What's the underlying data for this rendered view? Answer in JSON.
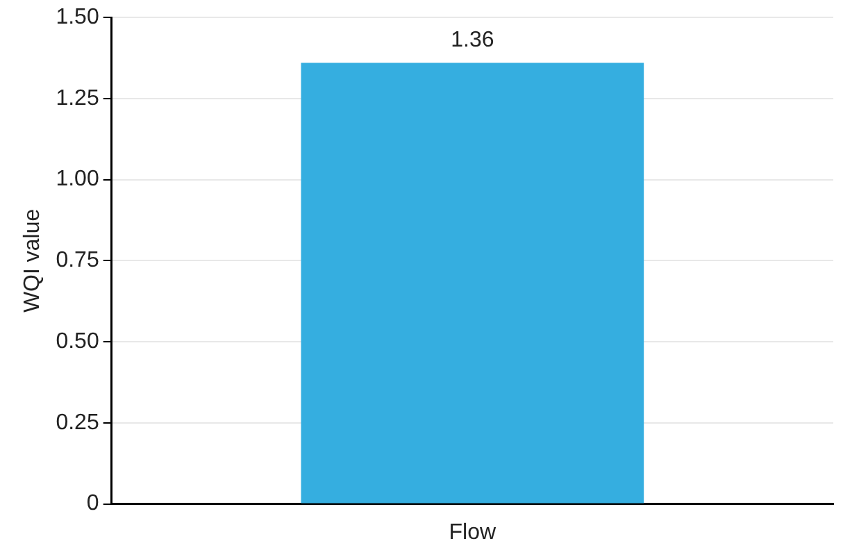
{
  "chart_data": {
    "type": "bar",
    "ylabel": "WQI value",
    "categories": [
      "Flow"
    ],
    "values": [
      1.36
    ],
    "color": "#35aee0",
    "data_labels": true,
    "ylim": [
      0,
      1.5
    ],
    "yticks": [
      0,
      {
        "value": 0.25,
        "label": "0.25"
      },
      {
        "value": 0.5,
        "label": "0.50"
      },
      {
        "value": 0.75,
        "label": "0.75"
      },
      {
        "value": 1,
        "label": "1.00"
      },
      {
        "value": 1.25,
        "label": "1.25"
      },
      {
        "value": 1.5,
        "label": "1.50"
      }
    ],
    "grid": "y",
    "legend": false
  }
}
